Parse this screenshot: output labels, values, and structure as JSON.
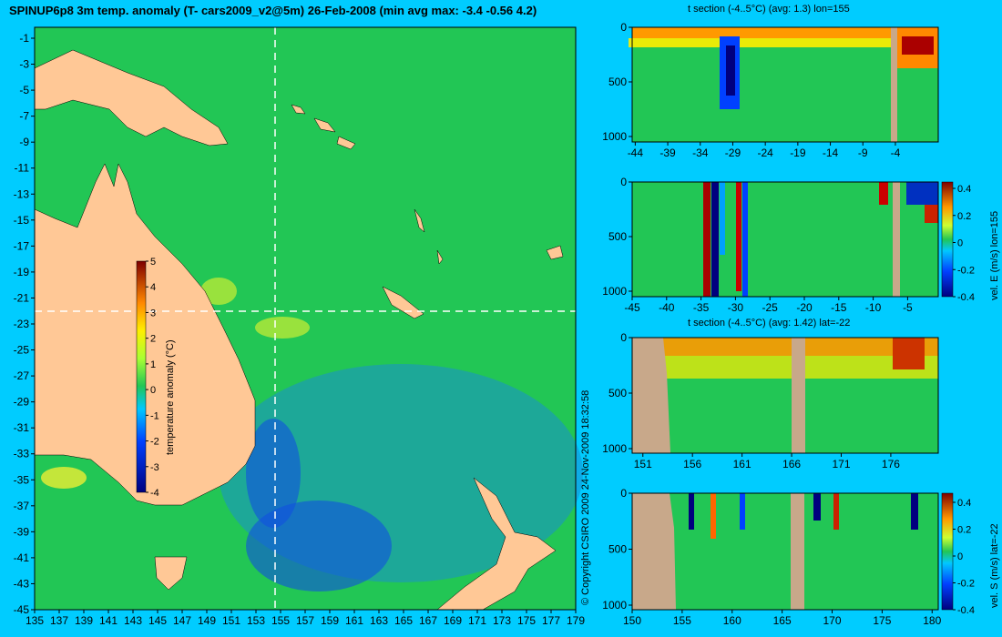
{
  "header": {
    "title": "SPINUP6p8 3m temp. anomaly (T- cars2009_v2@5m) 26-Feb-2008 (min avg max: -3.4 -0.56 4.2)",
    "copyright": "© Copyright CSIRO 2009   24-Nov-2009 18:32:58"
  },
  "colors": {
    "background": "#00ccff",
    "land": "#ffc896",
    "ocean": "#22c655",
    "section_land": "#c8a88a"
  },
  "chart_data": [
    {
      "type": "heatmap",
      "name": "map",
      "x_ticks": [
        "135",
        "137",
        "139",
        "141",
        "143",
        "145",
        "147",
        "149",
        "151",
        "153",
        "155",
        "157",
        "159",
        "161",
        "163",
        "165",
        "167",
        "169",
        "171",
        "173",
        "175",
        "177",
        "179"
      ],
      "y_ticks": [
        "-1",
        "-3",
        "-5",
        "-7",
        "-9",
        "-11",
        "-13",
        "-15",
        "-17",
        "-19",
        "-21",
        "-23",
        "-25",
        "-27",
        "-29",
        "-31",
        "-33",
        "-35",
        "-37",
        "-39",
        "-41",
        "-43",
        "-45"
      ],
      "crosshair": {
        "lon": 155,
        "lat": -22
      },
      "colorbar": {
        "label": "temperature anomaly (°C)",
        "ticks": [
          "5",
          "4",
          "3",
          "2",
          "1",
          "0",
          "-1",
          "-2",
          "-3",
          "-4"
        ],
        "range": [
          -4,
          5
        ]
      }
    },
    {
      "type": "heatmap",
      "name": "t-section-lon",
      "title": "t section (-4..5°C) (avg: 1.3) lon=155",
      "x_ticks": [
        "-44",
        "-39",
        "-34",
        "-29",
        "-24",
        "-19",
        "-14",
        "-9",
        "-4"
      ],
      "y_ticks": [
        "0",
        "500",
        "1000"
      ]
    },
    {
      "type": "heatmap",
      "name": "vel-e-section",
      "x_ticks": [
        "-45",
        "-40",
        "-35",
        "-30",
        "-25",
        "-20",
        "-15",
        "-10",
        "-5"
      ],
      "y_ticks": [
        "0",
        "500",
        "1000"
      ],
      "colorbar": {
        "label": "vel. E (m/s) lon=155",
        "ticks": [
          "0.4",
          "0.2",
          "0",
          "-0.2",
          "-0.4"
        ],
        "range": [
          -0.4,
          0.4
        ]
      }
    },
    {
      "type": "heatmap",
      "name": "t-section-lat",
      "title": "t section (-4..5°C) (avg: 1.42) lat=-22",
      "x_ticks": [
        "151",
        "156",
        "161",
        "166",
        "171",
        "176"
      ],
      "y_ticks": [
        "0",
        "500",
        "1000"
      ]
    },
    {
      "type": "heatmap",
      "name": "vel-s-section",
      "x_ticks": [
        "150",
        "155",
        "160",
        "165",
        "170",
        "175",
        "180"
      ],
      "y_ticks": [
        "0",
        "500",
        "1000"
      ],
      "colorbar": {
        "label": "vel. S (m/s) lat=-22",
        "ticks": [
          "0.4",
          "0.2",
          "0",
          "-0.2",
          "-0.4"
        ],
        "range": [
          -0.4,
          0.4
        ]
      }
    }
  ]
}
